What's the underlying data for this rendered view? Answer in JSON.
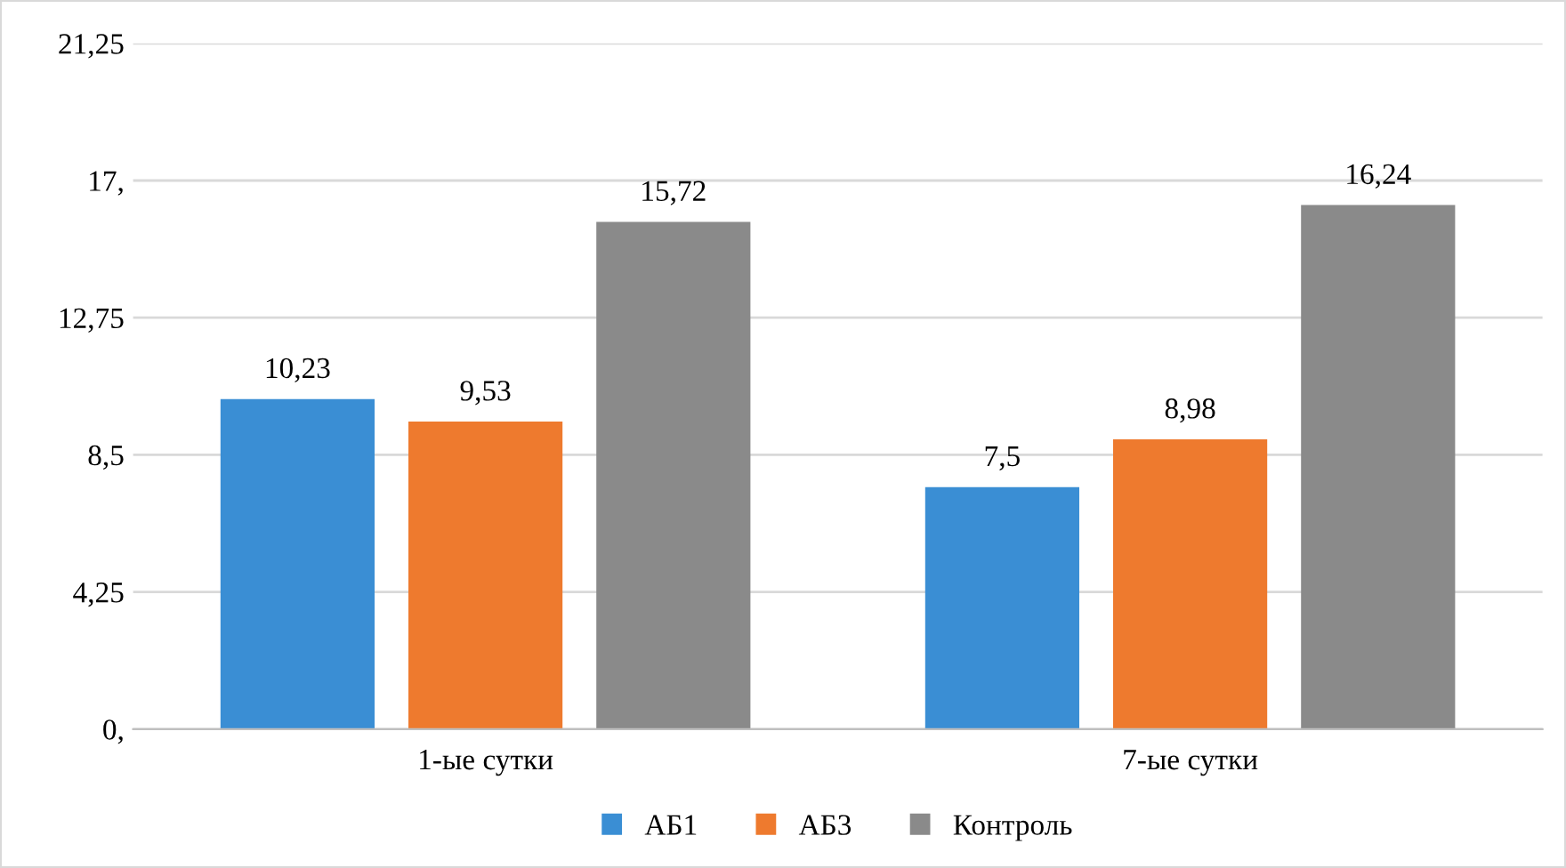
{
  "chart_data": {
    "type": "bar",
    "categories": [
      "1-ые сутки",
      "7-ые сутки"
    ],
    "series": [
      {
        "name": "АБ1",
        "color": "#3a8ed4",
        "values": [
          10.23,
          7.5
        ],
        "value_labels": [
          "10,23",
          "7,5"
        ]
      },
      {
        "name": "АБ3",
        "color": "#ee7a2e",
        "values": [
          9.53,
          8.98
        ],
        "value_labels": [
          "9,53",
          "8,98"
        ]
      },
      {
        "name": "Контроль",
        "color": "#8a8a8a",
        "values": [
          15.72,
          16.24
        ],
        "value_labels": [
          "15,72",
          "16,24"
        ]
      }
    ],
    "ylim": [
      0,
      21.25
    ],
    "yticks": [
      {
        "value": 0,
        "label": "0,"
      },
      {
        "value": 4.25,
        "label": "4,25"
      },
      {
        "value": 8.5,
        "label": "8,5"
      },
      {
        "value": 12.75,
        "label": "12,75"
      },
      {
        "value": 17,
        "label": "17,"
      },
      {
        "value": 21.25,
        "label": "21,25"
      }
    ],
    "grid": "y",
    "legend": "bottom"
  }
}
